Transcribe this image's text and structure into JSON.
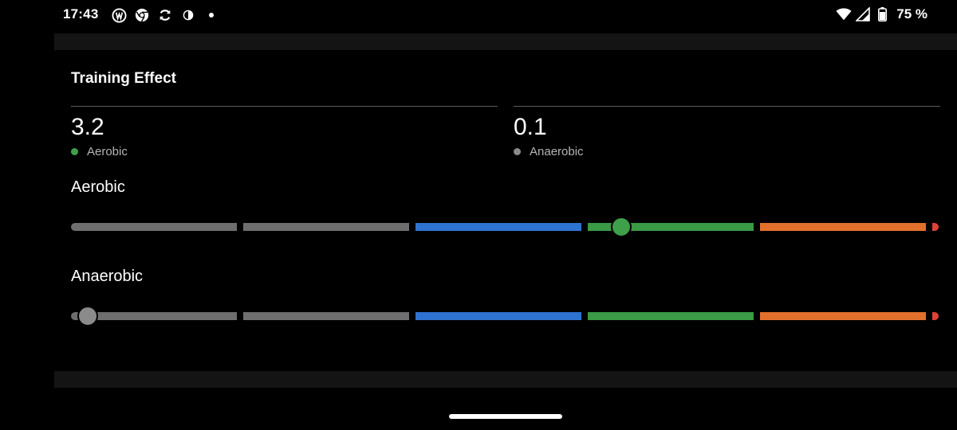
{
  "status_bar": {
    "time": "17:43",
    "left_icons": [
      "activity-app-icon",
      "chrome-icon",
      "sync-icon",
      "data-saver-icon",
      "notification-dot-icon"
    ],
    "right_icons": [
      "wifi-icon",
      "cell-signal-icon",
      "battery-icon"
    ],
    "battery_percent": "75 %"
  },
  "card": {
    "title": "Training Effect",
    "metrics": [
      {
        "value": "3.2",
        "label": "Aerobic",
        "color": "#3ea04a"
      },
      {
        "value": "0.1",
        "label": "Anaerobic",
        "color": "#8a8a8a"
      }
    ]
  },
  "scales": {
    "aerobic": {
      "label": "Aerobic",
      "value": 3.2,
      "thumb_color": "#3ea04a"
    },
    "anaerobic": {
      "label": "Anaerobic",
      "value": 0.1,
      "thumb_color": "#8a8a8a"
    },
    "segment_colors": [
      "#6e6e6e",
      "#6e6e6e",
      "#2f73d2",
      "#3a9a45",
      "#e2702d",
      "#e0403a"
    ]
  }
}
